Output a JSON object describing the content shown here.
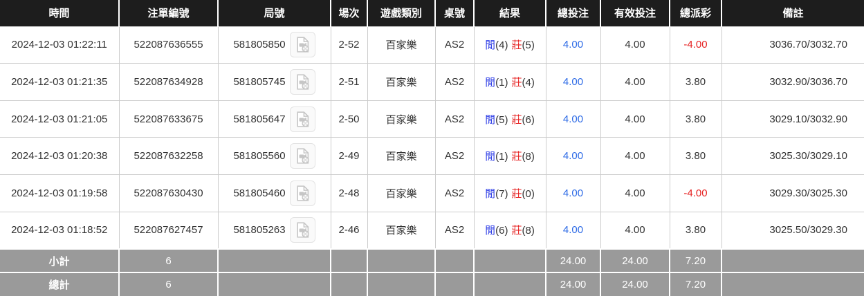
{
  "table": {
    "columns": [
      {
        "key": "time",
        "label": "時間"
      },
      {
        "key": "bet_id",
        "label": "注單編號"
      },
      {
        "key": "round",
        "label": "局號"
      },
      {
        "key": "session",
        "label": "場次"
      },
      {
        "key": "game_type",
        "label": "遊戲類別"
      },
      {
        "key": "table_no",
        "label": "桌號"
      },
      {
        "key": "result",
        "label": "結果"
      },
      {
        "key": "total_bet",
        "label": "總投注"
      },
      {
        "key": "valid_bet",
        "label": "有效投注"
      },
      {
        "key": "payout",
        "label": "總派彩"
      },
      {
        "key": "remark",
        "label": "備註"
      }
    ],
    "rows": [
      {
        "time": "2024-12-03 01:22:11",
        "bet_id": "522087636555",
        "round": "581805850",
        "session": "2-52",
        "game_type": "百家樂",
        "table_no": "AS2",
        "result": {
          "player": "閒",
          "player_score": "(4)",
          "banker": "莊",
          "banker_score": "(5)"
        },
        "total_bet": "4.00",
        "valid_bet": "4.00",
        "payout": "-4.00",
        "remark": "3036.70/3032.70"
      },
      {
        "time": "2024-12-03 01:21:35",
        "bet_id": "522087634928",
        "round": "581805745",
        "session": "2-51",
        "game_type": "百家樂",
        "table_no": "AS2",
        "result": {
          "player": "閒",
          "player_score": "(1)",
          "banker": "莊",
          "banker_score": "(4)"
        },
        "total_bet": "4.00",
        "valid_bet": "4.00",
        "payout": "3.80",
        "remark": "3032.90/3036.70"
      },
      {
        "time": "2024-12-03 01:21:05",
        "bet_id": "522087633675",
        "round": "581805647",
        "session": "2-50",
        "game_type": "百家樂",
        "table_no": "AS2",
        "result": {
          "player": "閒",
          "player_score": "(5)",
          "banker": "莊",
          "banker_score": "(6)"
        },
        "total_bet": "4.00",
        "valid_bet": "4.00",
        "payout": "3.80",
        "remark": "3029.10/3032.90"
      },
      {
        "time": "2024-12-03 01:20:38",
        "bet_id": "522087632258",
        "round": "581805560",
        "session": "2-49",
        "game_type": "百家樂",
        "table_no": "AS2",
        "result": {
          "player": "閒",
          "player_score": "(1)",
          "banker": "莊",
          "banker_score": "(8)"
        },
        "total_bet": "4.00",
        "valid_bet": "4.00",
        "payout": "3.80",
        "remark": "3025.30/3029.10"
      },
      {
        "time": "2024-12-03 01:19:58",
        "bet_id": "522087630430",
        "round": "581805460",
        "session": "2-48",
        "game_type": "百家樂",
        "table_no": "AS2",
        "result": {
          "player": "閒",
          "player_score": "(7)",
          "banker": "莊",
          "banker_score": "(0)"
        },
        "total_bet": "4.00",
        "valid_bet": "4.00",
        "payout": "-4.00",
        "remark": "3029.30/3025.30"
      },
      {
        "time": "2024-12-03 01:18:52",
        "bet_id": "522087627457",
        "round": "581805263",
        "session": "2-46",
        "game_type": "百家樂",
        "table_no": "AS2",
        "result": {
          "player": "閒",
          "player_score": "(6)",
          "banker": "莊",
          "banker_score": "(8)"
        },
        "total_bet": "4.00",
        "valid_bet": "4.00",
        "payout": "3.80",
        "remark": "3025.50/3029.30"
      }
    ],
    "footer_rows": [
      {
        "label": "小計",
        "bet_count": "6",
        "total_bet": "24.00",
        "valid_bet": "24.00",
        "payout": "7.20"
      },
      {
        "label": "總計",
        "bet_count": "6",
        "total_bet": "24.00",
        "valid_bet": "24.00",
        "payout": "7.20"
      }
    ]
  },
  "icons": {
    "video_replay": "video-replay-icon"
  },
  "colors": {
    "header_bg": "#1d1d1d",
    "footer_bg": "#9a9a9a",
    "player_blue": "#2d3ce6",
    "banker_red": "#e62222",
    "amount_blue": "#2e6be6",
    "negative_red": "#e62222",
    "text_dark": "#333333"
  }
}
